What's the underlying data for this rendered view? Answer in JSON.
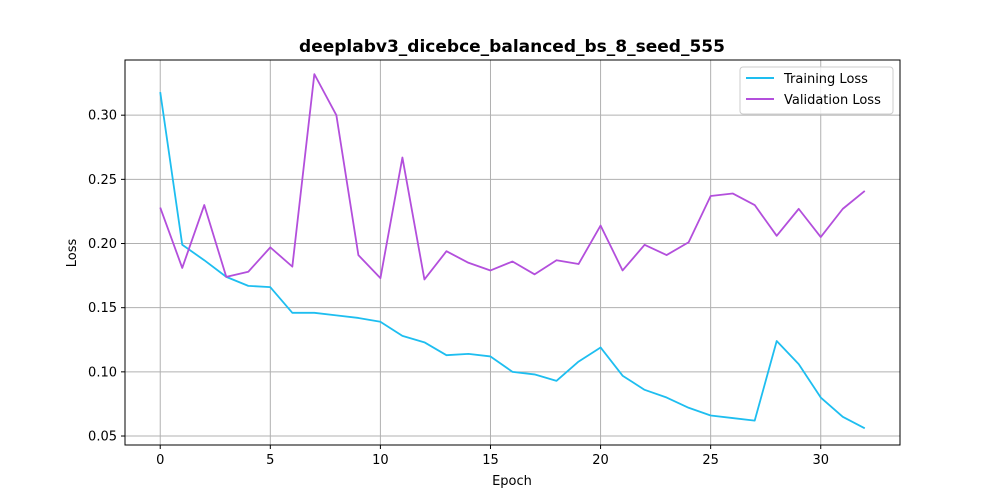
{
  "chart_data": {
    "type": "line",
    "title": "deeplabv3_dicebce_balanced_bs_8_seed_555",
    "xlabel": "Epoch",
    "ylabel": "Loss",
    "xlim": [
      -1.6,
      33.6
    ],
    "ylim": [
      0.043,
      0.343
    ],
    "xticks": [
      0,
      5,
      10,
      15,
      20,
      25,
      30
    ],
    "yticks": [
      0.05,
      0.1,
      0.15,
      0.2,
      0.25,
      0.3
    ],
    "ytick_labels": [
      "0.05",
      "0.10",
      "0.15",
      "0.20",
      "0.25",
      "0.30"
    ],
    "grid": true,
    "legend_position": "top-right",
    "x": [
      0,
      1,
      2,
      3,
      4,
      5,
      6,
      7,
      8,
      9,
      10,
      11,
      12,
      13,
      14,
      15,
      16,
      17,
      18,
      19,
      20,
      21,
      22,
      23,
      24,
      25,
      26,
      27,
      28,
      29,
      30,
      31,
      32
    ],
    "series": [
      {
        "name": "Training Loss",
        "color": "#1ebef0",
        "values": [
          0.318,
          0.199,
          0.187,
          0.174,
          0.167,
          0.166,
          0.146,
          0.146,
          0.144,
          0.142,
          0.139,
          0.128,
          0.123,
          0.113,
          0.114,
          0.112,
          0.1,
          0.098,
          0.093,
          0.108,
          0.119,
          0.097,
          0.086,
          0.08,
          0.072,
          0.066,
          0.064,
          0.062,
          0.124,
          0.106,
          0.08,
          0.065,
          0.056
        ]
      },
      {
        "name": "Validation Loss",
        "color": "#b34fdc",
        "values": [
          0.228,
          0.181,
          0.23,
          0.174,
          0.178,
          0.197,
          0.182,
          0.332,
          0.3,
          0.191,
          0.173,
          0.267,
          0.172,
          0.194,
          0.185,
          0.179,
          0.186,
          0.176,
          0.187,
          0.184,
          0.214,
          0.179,
          0.199,
          0.191,
          0.201,
          0.237,
          0.239,
          0.23,
          0.206,
          0.227,
          0.205,
          0.227,
          0.241
        ]
      }
    ]
  }
}
